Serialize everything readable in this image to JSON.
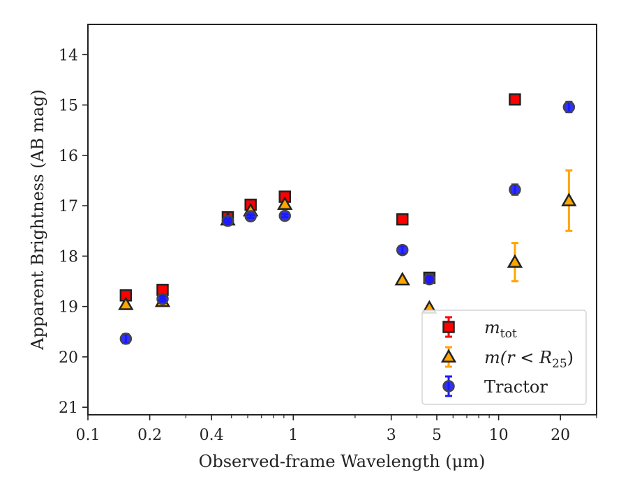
{
  "chart_data": {
    "type": "scatter",
    "xlabel": "Observed-frame Wavelength (μm)",
    "ylabel": "Apparent Brightness (AB mag)",
    "x_scale": "log",
    "y_inverted": true,
    "xlim": [
      0.1,
      30
    ],
    "ylim": [
      21.15,
      13.4
    ],
    "x_ticks": [
      0.1,
      0.2,
      0.4,
      1,
      3,
      5,
      10,
      20
    ],
    "x_tick_labels": [
      "0.1",
      "0.2",
      "0.4",
      "1",
      "3",
      "5",
      "10",
      "20"
    ],
    "x_minor_ticks": [
      0.3,
      0.5,
      0.6,
      0.7,
      0.8,
      0.9,
      2,
      4,
      6,
      7,
      8,
      9,
      30
    ],
    "y_ticks": [
      14,
      15,
      16,
      17,
      18,
      19,
      20,
      21
    ],
    "y_tick_labels": [
      "14",
      "15",
      "16",
      "17",
      "18",
      "19",
      "20",
      "21"
    ],
    "grid": false,
    "legend_position": "bottom-right",
    "legend_label_mtot_base": "m",
    "legend_label_mtot_sub": "tot",
    "legend_label_mr25_prefix": "m(r < R",
    "legend_label_mr25_sub": "25",
    "legend_label_mr25_suffix": ")",
    "series": [
      {
        "name": "m_tot",
        "marker": "square",
        "color": "#ff0000",
        "edge_color": "#222222",
        "x": [
          0.153,
          0.231,
          0.48,
          0.62,
          0.91,
          3.4,
          4.6,
          12.0
        ],
        "y": [
          18.78,
          18.67,
          17.23,
          16.98,
          16.82,
          17.27,
          18.43,
          14.89
        ],
        "yerr": [
          0.02,
          0.02,
          0.02,
          0.02,
          0.02,
          0.02,
          0.02,
          0.03
        ]
      },
      {
        "name": "m(r < R25)",
        "marker": "triangle",
        "color": "#ffa500",
        "edge_color": "#222222",
        "x": [
          0.153,
          0.231,
          0.48,
          0.62,
          0.91,
          3.4,
          4.6,
          12.0,
          22.0
        ],
        "y": [
          18.96,
          18.9,
          17.28,
          17.1,
          16.97,
          18.47,
          19.03,
          18.12,
          16.9
        ],
        "yerr": [
          0.02,
          0.02,
          0.02,
          0.02,
          0.02,
          0.03,
          0.04,
          0.38,
          0.6
        ]
      },
      {
        "name": "Tractor",
        "marker": "circle",
        "color": "#1a1aff",
        "edge_color": "#444444",
        "x": [
          0.153,
          0.231,
          0.48,
          0.62,
          0.91,
          3.4,
          4.6,
          12.0,
          22.0
        ],
        "y": [
          19.64,
          18.85,
          17.3,
          17.21,
          17.2,
          17.88,
          18.46,
          16.68,
          15.04
        ],
        "yerr": [
          0.09,
          0.05,
          0.03,
          0.03,
          0.03,
          0.08,
          0.05,
          0.1,
          0.1
        ]
      }
    ]
  },
  "legend": {
    "items": [
      {
        "label": "m_tot"
      },
      {
        "label": "m(r < R25)"
      },
      {
        "label": "Tractor"
      }
    ]
  },
  "colors": {
    "mtot": "#ff0000",
    "mr25": "#ffa500",
    "tractor": "#1a1aff",
    "axis": "#222222"
  }
}
